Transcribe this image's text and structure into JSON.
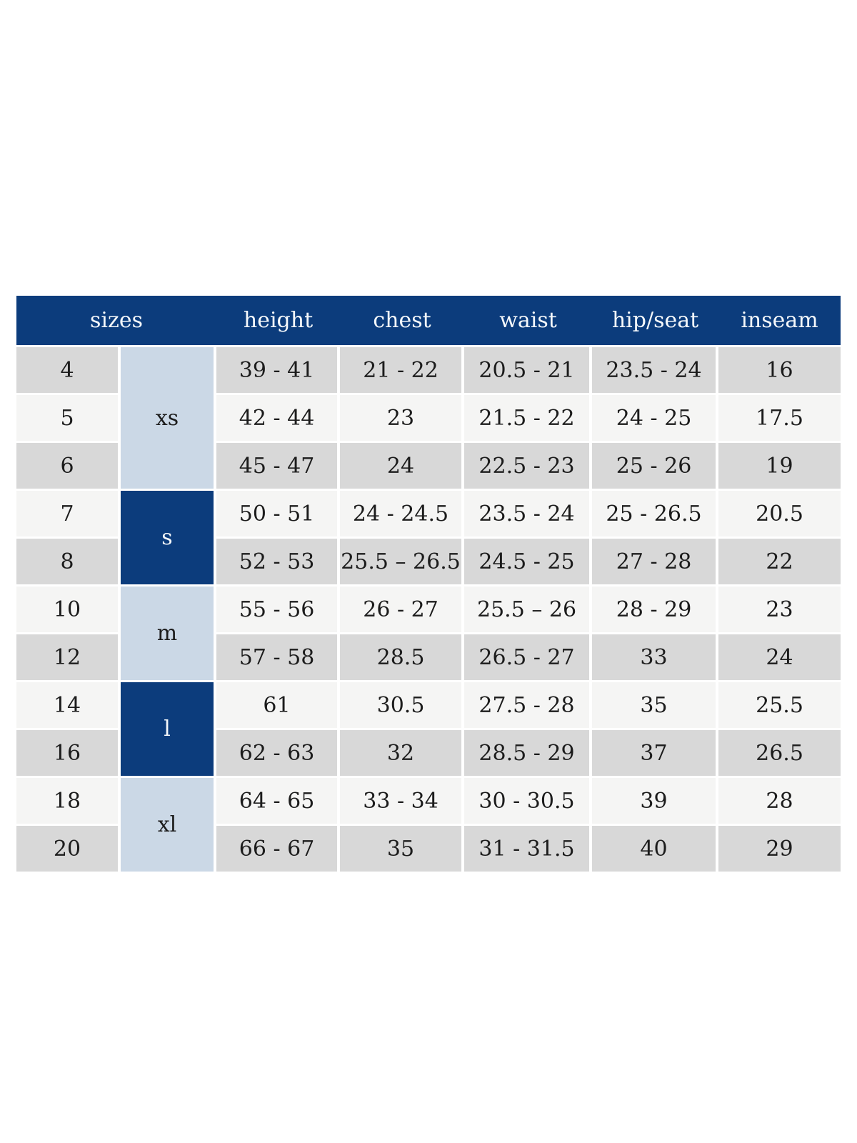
{
  "colors": {
    "navy": "#0c3c7c",
    "light_blue": "#cbd8e6",
    "stripe_dark": "#d8d8d8",
    "stripe_light": "#f5f5f4",
    "header_text": "#f5f8fb",
    "text": "#1c1c1c",
    "gap": "#ffffff",
    "background": "#ffffff"
  },
  "chart_data": {
    "type": "table",
    "title": "",
    "headers": [
      "sizes",
      "height",
      "chest",
      "waist",
      "hip/seat",
      "inseam"
    ],
    "size_groups": [
      {
        "label": "xs",
        "variant": "light",
        "span": 3
      },
      {
        "label": "s",
        "variant": "dark",
        "span": 2
      },
      {
        "label": "m",
        "variant": "light",
        "span": 2
      },
      {
        "label": "l",
        "variant": "dark",
        "span": 2
      },
      {
        "label": "xl",
        "variant": "light",
        "span": 2
      }
    ],
    "rows": [
      {
        "size": "4",
        "group": "xs",
        "height": "39 - 41",
        "chest": "21 - 22",
        "waist": "20.5 - 21",
        "hip_seat": "23.5 - 24",
        "inseam": "16"
      },
      {
        "size": "5",
        "group": "xs",
        "height": "42 - 44",
        "chest": "23",
        "waist": "21.5 - 22",
        "hip_seat": "24 - 25",
        "inseam": "17.5"
      },
      {
        "size": "6",
        "group": "xs",
        "height": "45 - 47",
        "chest": "24",
        "waist": "22.5 - 23",
        "hip_seat": "25 - 26",
        "inseam": "19"
      },
      {
        "size": "7",
        "group": "s",
        "height": "50 - 51",
        "chest": "24 - 24.5",
        "waist": "23.5 - 24",
        "hip_seat": "25 - 26.5",
        "inseam": "20.5"
      },
      {
        "size": "8",
        "group": "s",
        "height": "52 - 53",
        "chest": "25.5 – 26.5",
        "waist": "24.5 - 25",
        "hip_seat": "27 - 28",
        "inseam": "22"
      },
      {
        "size": "10",
        "group": "m",
        "height": "55 - 56",
        "chest": "26 - 27",
        "waist": "25.5 – 26",
        "hip_seat": "28 - 29",
        "inseam": "23"
      },
      {
        "size": "12",
        "group": "m",
        "height": "57 - 58",
        "chest": "28.5",
        "waist": "26.5 - 27",
        "hip_seat": "33",
        "inseam": "24"
      },
      {
        "size": "14",
        "group": "l",
        "height": "61",
        "chest": "30.5",
        "waist": "27.5 - 28",
        "hip_seat": "35",
        "inseam": "25.5"
      },
      {
        "size": "16",
        "group": "l",
        "height": "62 - 63",
        "chest": "32",
        "waist": "28.5 - 29",
        "hip_seat": "37",
        "inseam": "26.5"
      },
      {
        "size": "18",
        "group": "xl",
        "height": "64 - 65",
        "chest": "33 - 34",
        "waist": "30 - 30.5",
        "hip_seat": "39",
        "inseam": "28"
      },
      {
        "size": "20",
        "group": "xl",
        "height": "66 - 67",
        "chest": "35",
        "waist": "31 - 31.5",
        "hip_seat": "40",
        "inseam": "29"
      }
    ]
  }
}
